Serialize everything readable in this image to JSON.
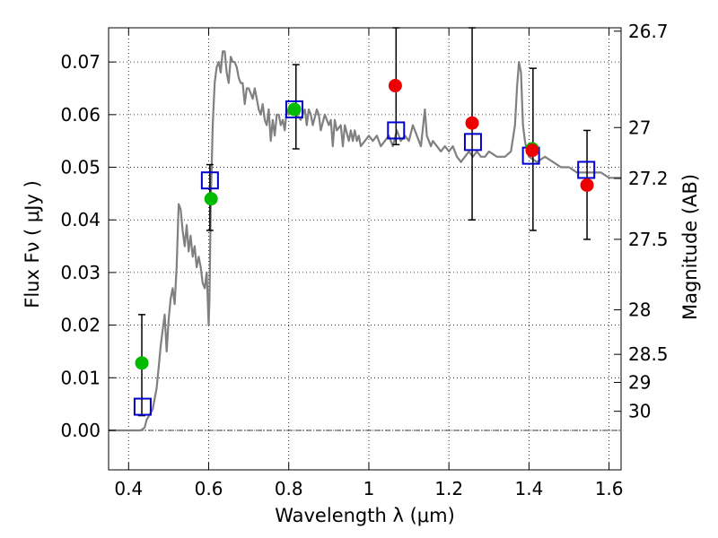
{
  "chart_data": {
    "type": "scatter",
    "xlabel": "Wavelength  λ (μm)",
    "ylabel": "Flux  Fν  ( μJy )",
    "ylabel_right": "Magnitude (AB)",
    "xlim": [
      0.35,
      1.63
    ],
    "ylim": [
      -0.0075,
      0.0765
    ],
    "x_ticks": [
      0.4,
      0.6,
      0.8,
      1.0,
      1.2,
      1.4,
      1.6
    ],
    "x_tick_labels": [
      "0.4",
      "0.6",
      "0.8",
      "1",
      "1.2",
      "1.4",
      "1.6"
    ],
    "y_ticks": [
      0.0,
      0.01,
      0.02,
      0.03,
      0.04,
      0.05,
      0.06,
      0.07
    ],
    "y_tick_labels": [
      "0.00",
      "0.01",
      "0.02",
      "0.03",
      "0.04",
      "0.05",
      "0.06",
      "0.07"
    ],
    "right_ticks": [
      {
        "mag": 26.7,
        "label": "26.7"
      },
      {
        "mag": 27.0,
        "label": "27"
      },
      {
        "mag": 27.2,
        "label": "27.2"
      },
      {
        "mag": 27.5,
        "label": "27.5"
      },
      {
        "mag": 28.0,
        "label": "28"
      },
      {
        "mag": 28.5,
        "label": "28.5"
      },
      {
        "mag": 29.0,
        "label": "29"
      },
      {
        "mag": 30.0,
        "label": "30"
      }
    ],
    "grid": true,
    "zero_line": true,
    "series": [
      {
        "kind": "line",
        "color": "#808080",
        "x": [
          0.35,
          0.43,
          0.44,
          0.445,
          0.46,
          0.47,
          0.475,
          0.48,
          0.485,
          0.49,
          0.495,
          0.5,
          0.505,
          0.51,
          0.515,
          0.52,
          0.525,
          0.53,
          0.535,
          0.54,
          0.545,
          0.55,
          0.555,
          0.56,
          0.565,
          0.57,
          0.575,
          0.58,
          0.585,
          0.59,
          0.595,
          0.6,
          0.602,
          0.605,
          0.61,
          0.615,
          0.62,
          0.625,
          0.63,
          0.635,
          0.64,
          0.645,
          0.65,
          0.655,
          0.66,
          0.665,
          0.67,
          0.675,
          0.68,
          0.685,
          0.69,
          0.695,
          0.7,
          0.705,
          0.71,
          0.715,
          0.72,
          0.725,
          0.73,
          0.735,
          0.74,
          0.745,
          0.75,
          0.755,
          0.76,
          0.765,
          0.77,
          0.775,
          0.78,
          0.785,
          0.79,
          0.795,
          0.8,
          0.81,
          0.82,
          0.83,
          0.84,
          0.845,
          0.85,
          0.855,
          0.86,
          0.87,
          0.875,
          0.88,
          0.89,
          0.9,
          0.905,
          0.91,
          0.915,
          0.92,
          0.93,
          0.935,
          0.94,
          0.95,
          0.955,
          0.96,
          0.965,
          0.97,
          0.975,
          0.98,
          0.99,
          1.0,
          1.01,
          1.02,
          1.03,
          1.04,
          1.05,
          1.06,
          1.07,
          1.08,
          1.09,
          1.1,
          1.11,
          1.12,
          1.13,
          1.14,
          1.145,
          1.15,
          1.155,
          1.16,
          1.17,
          1.18,
          1.19,
          1.2,
          1.21,
          1.22,
          1.23,
          1.24,
          1.25,
          1.26,
          1.27,
          1.28,
          1.29,
          1.3,
          1.32,
          1.34,
          1.355,
          1.365,
          1.37,
          1.375,
          1.38,
          1.385,
          1.39,
          1.395,
          1.4,
          1.42,
          1.44,
          1.46,
          1.48,
          1.5,
          1.52,
          1.54,
          1.56,
          1.58,
          1.6,
          1.63
        ],
        "y": [
          0.0,
          0.0,
          0.0005,
          0.002,
          0.004,
          0.008,
          0.012,
          0.016,
          0.019,
          0.022,
          0.015,
          0.021,
          0.025,
          0.027,
          0.024,
          0.031,
          0.043,
          0.042,
          0.038,
          0.035,
          0.039,
          0.034,
          0.037,
          0.033,
          0.035,
          0.031,
          0.033,
          0.031,
          0.028,
          0.027,
          0.03,
          0.02,
          0.025,
          0.043,
          0.058,
          0.066,
          0.069,
          0.07,
          0.068,
          0.072,
          0.072,
          0.068,
          0.066,
          0.071,
          0.07,
          0.07,
          0.069,
          0.067,
          0.066,
          0.066,
          0.062,
          0.065,
          0.065,
          0.064,
          0.063,
          0.065,
          0.063,
          0.061,
          0.06,
          0.062,
          0.059,
          0.058,
          0.061,
          0.055,
          0.059,
          0.056,
          0.06,
          0.06,
          0.058,
          0.059,
          0.057,
          0.061,
          0.06,
          0.061,
          0.06,
          0.059,
          0.061,
          0.058,
          0.061,
          0.06,
          0.058,
          0.061,
          0.06,
          0.057,
          0.06,
          0.058,
          0.059,
          0.054,
          0.059,
          0.057,
          0.058,
          0.054,
          0.058,
          0.055,
          0.057,
          0.055,
          0.057,
          0.055,
          0.056,
          0.054,
          0.055,
          0.056,
          0.055,
          0.056,
          0.054,
          0.055,
          0.056,
          0.054,
          0.057,
          0.055,
          0.056,
          0.055,
          0.058,
          0.056,
          0.054,
          0.061,
          0.056,
          0.055,
          0.054,
          0.055,
          0.054,
          0.053,
          0.054,
          0.053,
          0.054,
          0.052,
          0.051,
          0.052,
          0.053,
          0.052,
          0.053,
          0.052,
          0.052,
          0.053,
          0.052,
          0.052,
          0.053,
          0.058,
          0.065,
          0.07,
          0.068,
          0.058,
          0.055,
          0.053,
          0.052,
          0.051,
          0.052,
          0.051,
          0.05,
          0.05,
          0.049,
          0.049,
          0.049,
          0.049,
          0.048,
          0.048
        ]
      },
      {
        "kind": "markers",
        "shape": "square",
        "color": "#0000cc",
        "points": [
          [
            0.435,
            0.0045
          ],
          [
            0.603,
            0.0475
          ],
          [
            0.814,
            0.061
          ],
          [
            1.068,
            0.057
          ],
          [
            1.26,
            0.0548
          ],
          [
            1.405,
            0.0522
          ],
          [
            1.543,
            0.0495
          ]
        ]
      },
      {
        "kind": "markers",
        "shape": "circle",
        "color": "#00bb00",
        "points": [
          [
            0.433,
            0.0128
          ],
          [
            0.606,
            0.044
          ],
          [
            0.814,
            0.061
          ],
          [
            1.408,
            0.0535
          ]
        ]
      },
      {
        "kind": "markers",
        "shape": "circle",
        "color": "#ee0000",
        "points": [
          [
            1.066,
            0.0655
          ],
          [
            1.258,
            0.0584
          ],
          [
            1.408,
            0.0532
          ],
          [
            1.545,
            0.0466
          ]
        ]
      },
      {
        "kind": "errorbars",
        "color": "#000000",
        "bars": [
          [
            0.433,
            0.0028,
            0.022
          ],
          [
            0.603,
            0.038,
            0.0505
          ],
          [
            0.818,
            0.0535,
            0.0695
          ],
          [
            1.068,
            0.0543,
            0.0765
          ],
          [
            1.258,
            0.04,
            0.0765
          ],
          [
            1.41,
            0.038,
            0.0688
          ],
          [
            1.545,
            0.0363,
            0.057
          ]
        ]
      }
    ]
  }
}
